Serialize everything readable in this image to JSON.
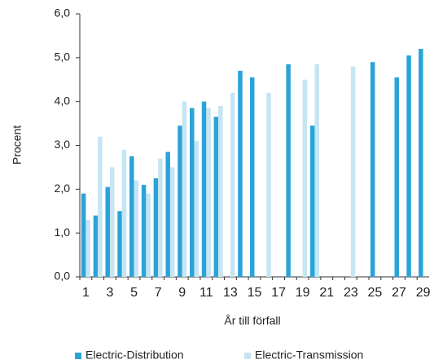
{
  "chart_data": {
    "type": "bar",
    "x_label": "År till förfall",
    "y_label": "Procent",
    "categories": [
      "1",
      null,
      "3",
      null,
      "5",
      null,
      "7",
      null,
      "9",
      null,
      "11",
      null,
      "13",
      null,
      "15",
      null,
      "17",
      null,
      "19",
      null,
      "21",
      null,
      "23",
      null,
      "25",
      null,
      "27",
      null,
      "29"
    ],
    "series": [
      {
        "name": "Electric-Distribution",
        "color": "#2ba3d9",
        "values": [
          1.9,
          1.4,
          2.05,
          1.5,
          2.75,
          2.1,
          2.25,
          2.85,
          3.45,
          3.85,
          4.0,
          3.65,
          null,
          4.7,
          4.55,
          null,
          null,
          4.85,
          null,
          3.45,
          null,
          null,
          null,
          null,
          4.9,
          null,
          4.55,
          5.05,
          5.2
        ]
      },
      {
        "name": "Electric-Transmission",
        "color": "#c6e5f3",
        "values": [
          1.3,
          3.2,
          2.5,
          2.9,
          2.2,
          1.9,
          2.7,
          2.5,
          4.0,
          3.1,
          3.85,
          3.9,
          4.2,
          null,
          null,
          4.2,
          null,
          null,
          4.5,
          4.85,
          null,
          null,
          4.8,
          null,
          null,
          null,
          null,
          null,
          null
        ]
      }
    ],
    "ylim": [
      0,
      6
    ],
    "yticks": [
      {
        "value": 0,
        "label": "0,0"
      },
      {
        "value": 1,
        "label": "1,0"
      },
      {
        "value": 2,
        "label": "2,0"
      },
      {
        "value": 3,
        "label": "3,0"
      },
      {
        "value": 4,
        "label": "4,0"
      },
      {
        "value": 5,
        "label": "5,0"
      },
      {
        "value": 6,
        "label": "6,0"
      }
    ],
    "legend": "bottom"
  }
}
